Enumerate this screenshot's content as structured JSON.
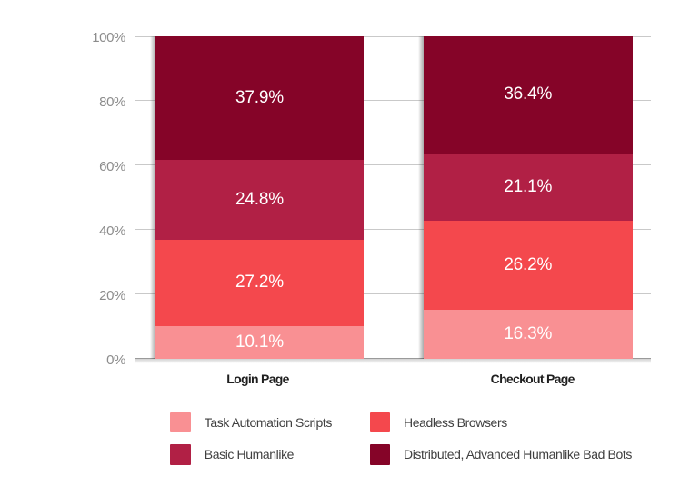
{
  "chart_data": {
    "type": "bar",
    "variant": "stacked-percentage-column",
    "title": "",
    "xlabel": "",
    "ylabel": "",
    "unit": "%",
    "categories": [
      "Login Page",
      "Checkout Page"
    ],
    "series": [
      {
        "name": "Task Automation Scripts",
        "color": "#f99093",
        "values": [
          10.1,
          16.3
        ]
      },
      {
        "name": "Headless Browsers",
        "color": "#f4484d",
        "values": [
          27.2,
          26.2
        ]
      },
      {
        "name": "Basic Humanlike",
        "color": "#b12045",
        "values": [
          24.8,
          21.1
        ]
      },
      {
        "name": "Distributed, Advanced Humanlike Bad Bots",
        "color": "#850428",
        "values": [
          37.9,
          36.4
        ]
      }
    ],
    "data_labels": {
      "visible": true,
      "format": "{value}%",
      "color": "#ffffff"
    },
    "y_axis": {
      "min": 0,
      "max": 100,
      "tick_step": 20,
      "tick_labels": [
        "0%",
        "20%",
        "40%",
        "60%",
        "80%",
        "100%"
      ],
      "grid": true
    },
    "legend": {
      "position": "bottom",
      "rows": 2,
      "columns": 2,
      "items": [
        "Task Automation Scripts",
        "Headless Browsers",
        "Basic Humanlike",
        "Distributed, Advanced Humanlike Bad Bots"
      ]
    }
  }
}
